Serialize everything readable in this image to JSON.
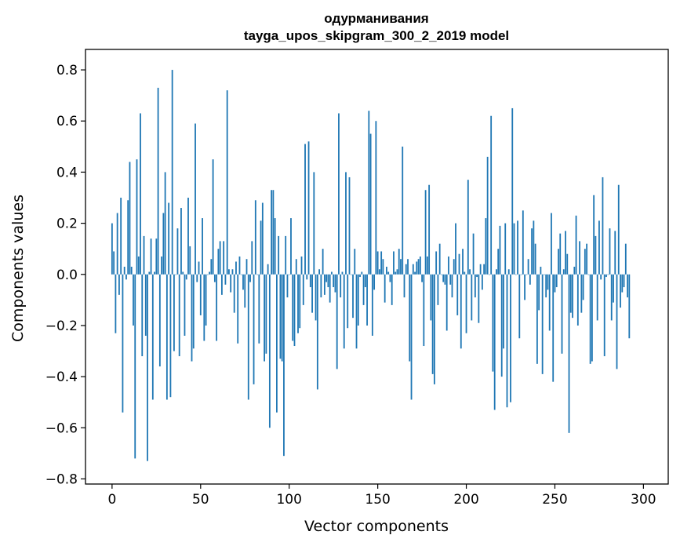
{
  "chart_data": {
    "type": "bar",
    "title_line1": "одурманивания",
    "title_line2": "tayga_upos_skipgram_300_2_2019 model",
    "xlabel": "Vector components",
    "ylabel": "Components values",
    "xlim": [
      -15,
      314
    ],
    "ylim": [
      -0.82,
      0.88
    ],
    "xticks": [
      0,
      50,
      100,
      150,
      200,
      250,
      300
    ],
    "xtick_labels": [
      "0",
      "50",
      "100",
      "150",
      "200",
      "250",
      "300"
    ],
    "yticks": [
      -0.8,
      -0.6,
      -0.4,
      -0.2,
      0.0,
      0.2,
      0.4,
      0.6,
      0.8
    ],
    "ytick_labels": [
      "−0.8",
      "−0.6",
      "−0.4",
      "−0.2",
      "0.0",
      "0.2",
      "0.4",
      "0.6",
      "0.8"
    ],
    "bar_color": "#1f77b4",
    "grid": false,
    "values": [
      0.2,
      0.09,
      -0.23,
      0.24,
      -0.08,
      0.3,
      -0.54,
      0.03,
      -0.02,
      0.29,
      0.44,
      0.03,
      -0.2,
      -0.72,
      0.45,
      0.07,
      0.63,
      -0.32,
      0.15,
      -0.24,
      -0.73,
      0.01,
      0.14,
      -0.49,
      0.01,
      0.14,
      0.73,
      -0.36,
      0.07,
      0.24,
      0.4,
      -0.49,
      0.28,
      -0.48,
      0.8,
      -0.3,
      0.0,
      0.18,
      -0.32,
      0.26,
      0.01,
      -0.24,
      -0.02,
      0.3,
      0.11,
      -0.34,
      -0.29,
      0.59,
      -0.03,
      0.05,
      -0.16,
      0.22,
      -0.26,
      -0.2,
      0.0,
      0.01,
      0.06,
      0.45,
      -0.03,
      -0.26,
      0.1,
      0.13,
      -0.08,
      0.13,
      -0.04,
      0.72,
      0.02,
      -0.07,
      0.02,
      -0.15,
      0.05,
      -0.27,
      0.07,
      0.0,
      -0.06,
      -0.13,
      0.06,
      -0.49,
      -0.03,
      0.13,
      -0.43,
      0.29,
      0.0,
      -0.27,
      0.21,
      0.28,
      -0.34,
      -0.31,
      0.04,
      -0.6,
      0.33,
      0.33,
      0.22,
      -0.54,
      0.15,
      -0.33,
      -0.34,
      -0.71,
      0.15,
      -0.09,
      0.0,
      0.22,
      -0.26,
      -0.28,
      0.06,
      -0.23,
      -0.21,
      0.07,
      -0.12,
      0.51,
      -0.02,
      0.52,
      -0.05,
      -0.15,
      0.4,
      -0.18,
      -0.45,
      0.02,
      -0.09,
      0.1,
      -0.08,
      -0.03,
      -0.05,
      -0.11,
      0.01,
      -0.05,
      -0.07,
      -0.37,
      0.63,
      -0.09,
      0.01,
      -0.29,
      0.4,
      -0.21,
      0.38,
      0.0,
      -0.17,
      0.1,
      -0.29,
      -0.2,
      -0.01,
      0.01,
      -0.12,
      -0.05,
      -0.2,
      0.64,
      0.55,
      -0.24,
      -0.06,
      0.6,
      0.09,
      0.02,
      0.09,
      0.06,
      -0.11,
      0.03,
      0.01,
      -0.03,
      -0.12,
      0.09,
      0.01,
      0.02,
      0.1,
      0.06,
      0.5,
      -0.09,
      0.04,
      0.06,
      -0.34,
      -0.49,
      0.04,
      0.01,
      0.05,
      0.06,
      0.07,
      -0.03,
      -0.28,
      0.33,
      0.07,
      0.35,
      -0.18,
      -0.39,
      -0.43,
      0.09,
      -0.12,
      0.12,
      0.0,
      -0.03,
      -0.04,
      -0.22,
      0.07,
      -0.04,
      -0.09,
      0.06,
      0.2,
      -0.16,
      0.08,
      -0.29,
      0.1,
      0.01,
      -0.23,
      0.37,
      0.02,
      -0.18,
      0.16,
      -0.09,
      -0.01,
      -0.19,
      0.04,
      -0.06,
      0.04,
      0.22,
      0.46,
      0.0,
      0.62,
      -0.38,
      -0.53,
      0.02,
      0.1,
      0.19,
      -0.4,
      -0.29,
      0.2,
      -0.52,
      0.02,
      -0.5,
      0.65,
      0.2,
      0.0,
      0.21,
      -0.25,
      0.0,
      0.25,
      -0.1,
      0.0,
      0.06,
      -0.04,
      0.18,
      0.21,
      0.12,
      -0.35,
      -0.14,
      0.03,
      -0.39,
      0.0,
      -0.09,
      -0.06,
      -0.22,
      0.24,
      -0.42,
      -0.07,
      -0.05,
      0.1,
      0.16,
      -0.31,
      0.02,
      0.17,
      0.08,
      -0.62,
      -0.15,
      -0.17,
      0.03,
      0.23,
      -0.2,
      0.13,
      -0.15,
      -0.1,
      0.1,
      0.12,
      0.0,
      -0.35,
      -0.34,
      0.31,
      0.15,
      -0.18,
      0.21,
      -0.02,
      0.38,
      -0.32,
      -0.01,
      0.0,
      0.18,
      -0.18,
      -0.11,
      0.17,
      -0.37,
      0.35,
      -0.13,
      -0.07,
      -0.05,
      0.12,
      -0.09,
      -0.25
    ]
  }
}
